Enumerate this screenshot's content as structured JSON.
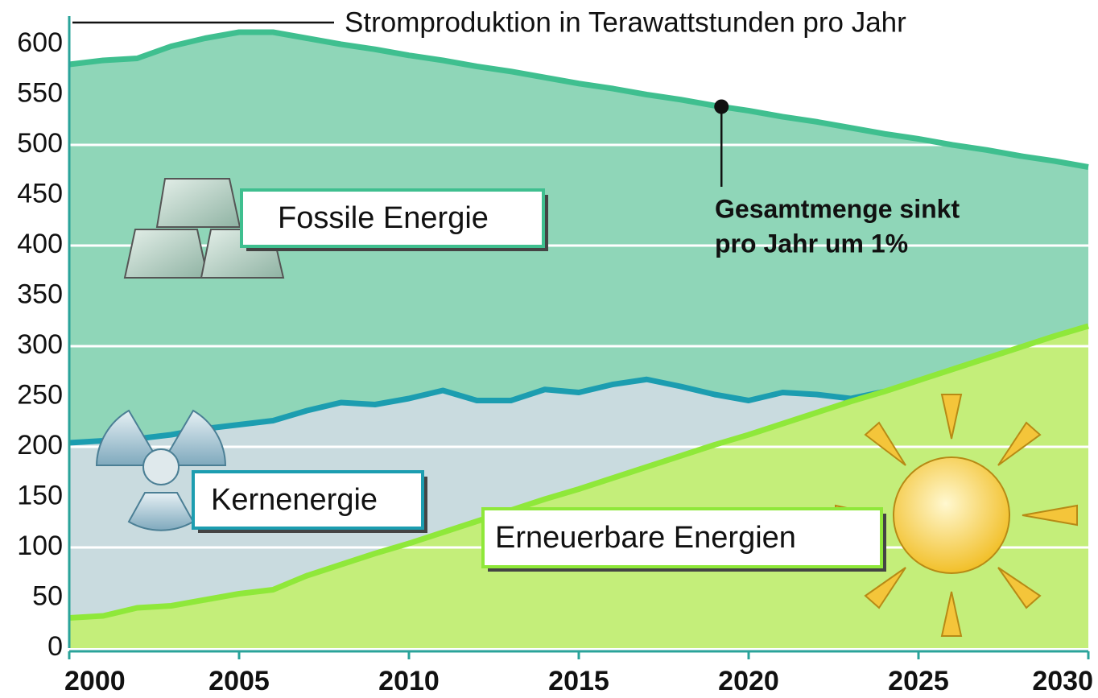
{
  "chart_data": {
    "type": "stacked_area",
    "title": "Stromproduktion in Terawattstunden pro Jahr",
    "annotation": [
      "Gesamtmenge sinkt",
      "pro Jahr um 1%"
    ],
    "annotation_x": 2019.2,
    "x": [
      2000,
      2001,
      2002,
      2003,
      2004,
      2005,
      2006,
      2007,
      2008,
      2009,
      2010,
      2011,
      2012,
      2013,
      2014,
      2015,
      2016,
      2017,
      2018,
      2019,
      2020,
      2021,
      2022,
      2023,
      2024,
      2025,
      2026,
      2027,
      2028,
      2029,
      2030
    ],
    "series": [
      {
        "name": "Erneuerbare Energien",
        "color": "#8fe83a",
        "fill": "#c4ee7a",
        "values": [
          30,
          32,
          40,
          42,
          48,
          54,
          58,
          72,
          83,
          94,
          104,
          115,
          126,
          137,
          148,
          158,
          169,
          180,
          191,
          202,
          212,
          223,
          234,
          245,
          255,
          266,
          277,
          288,
          299,
          310,
          320
        ]
      },
      {
        "name": "Kernenergie",
        "color": "#1c9db0",
        "fill": "#c9dbdf",
        "values": [
          174,
          174,
          168,
          170,
          170,
          168,
          168,
          164,
          161,
          148,
          144,
          141,
          120,
          109,
          109,
          96,
          93,
          87,
          69,
          50,
          34,
          31,
          18,
          3,
          0,
          0,
          0,
          0,
          0,
          0,
          0
        ]
      },
      {
        "name": "Fossile Energie",
        "color": "#3fbf8f",
        "fill": "#8fd6b8",
        "values": [
          376,
          378,
          378,
          386,
          388,
          390,
          386,
          370,
          356,
          353,
          341,
          328,
          332,
          327,
          310,
          307,
          294,
          283,
          285,
          287,
          288,
          274,
          271,
          269,
          256,
          240,
          223,
          207,
          190,
          174,
          158
        ]
      }
    ],
    "xlim": [
      2000,
      2030
    ],
    "xticks": [
      2000,
      2005,
      2010,
      2015,
      2020,
      2025,
      2030
    ],
    "ylim": [
      0,
      600
    ],
    "yticks": [
      0,
      50,
      100,
      150,
      200,
      250,
      300,
      350,
      400,
      450,
      500,
      550,
      600
    ],
    "grid": true
  }
}
